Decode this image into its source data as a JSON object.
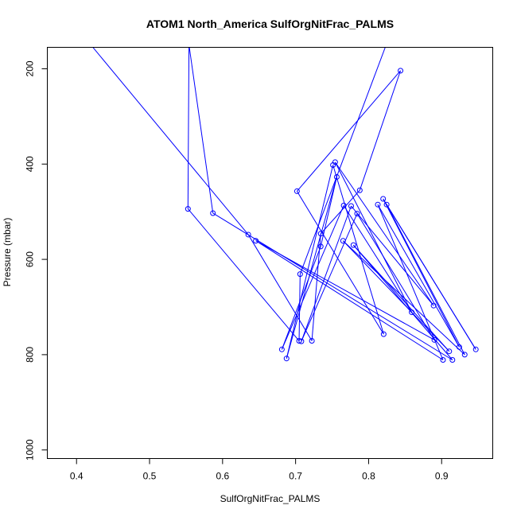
{
  "chart_data": {
    "type": "line",
    "title": "ATOM1 North_America SulfOrgNitFrac_PALMS",
    "xlabel": "SulfOrgNitFrac_PALMS",
    "ylabel": "Pressure (mbar)",
    "xlim": [
      0.36,
      0.97
    ],
    "ylim": [
      1018,
      155
    ],
    "y_reversed": true,
    "xticks": [
      0.4,
      0.5,
      0.6,
      0.7,
      0.8,
      0.9
    ],
    "yticks": [
      200,
      400,
      600,
      800,
      1000
    ],
    "grid": false,
    "series_color": "#0000ff",
    "points": [
      {
        "x": 0.4197,
        "y": 150,
        "marker": false
      },
      {
        "x": 0.6352,
        "y": 548
      },
      {
        "x": 0.7223,
        "y": 771
      },
      {
        "x": 0.7345,
        "y": 546
      },
      {
        "x": 0.7879,
        "y": 455
      },
      {
        "x": 0.8437,
        "y": 204
      },
      {
        "x": 0.7019,
        "y": 457
      },
      {
        "x": 0.8206,
        "y": 757
      },
      {
        "x": 0.7512,
        "y": 402
      },
      {
        "x": 0.6876,
        "y": 808
      },
      {
        "x": 0.7564,
        "y": 427
      },
      {
        "x": 0.7344,
        "y": 573
      },
      {
        "x": 0.6812,
        "y": 789
      },
      {
        "x": 0.7659,
        "y": 487
      },
      {
        "x": 0.859,
        "y": 711
      },
      {
        "x": 0.7542,
        "y": 396
      },
      {
        "x": 0.889,
        "y": 697
      },
      {
        "x": 0.7761,
        "y": 488
      },
      {
        "x": 0.7079,
        "y": 772
      },
      {
        "x": 0.7843,
        "y": 504
      },
      {
        "x": 0.89,
        "y": 769
      },
      {
        "x": 0.6455,
        "y": 561
      },
      {
        "x": 0.9019,
        "y": 811
      },
      {
        "x": 0.8126,
        "y": 485
      },
      {
        "x": 0.9242,
        "y": 784
      },
      {
        "x": 0.8199,
        "y": 473
      },
      {
        "x": 0.9468,
        "y": 789
      },
      {
        "x": 0.8247,
        "y": 485
      },
      {
        "x": 0.9316,
        "y": 800
      },
      {
        "x": 0.765,
        "y": 561
      },
      {
        "x": 0.9104,
        "y": 793
      },
      {
        "x": 0.7792,
        "y": 570
      },
      {
        "x": 0.9148,
        "y": 811
      },
      {
        "x": 0.5868,
        "y": 503
      },
      {
        "x": 0.554,
        "y": 150,
        "marker": false
      },
      {
        "x": 0.5526,
        "y": 494
      },
      {
        "x": 0.7048,
        "y": 771
      },
      {
        "x": 0.7062,
        "y": 631
      },
      {
        "x": 0.824,
        "y": 150,
        "marker": false
      }
    ]
  }
}
